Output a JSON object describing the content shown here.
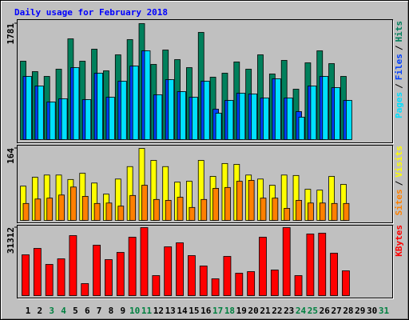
{
  "legend_separator": "/",
  "chart_data": [
    {
      "type": "bar",
      "title": "Daily usage for February 2018",
      "ylim": [
        0,
        1781
      ],
      "yticks": [
        1781
      ],
      "series": [
        {
          "name": "Hits",
          "color": "#00805c",
          "values": [
            1208,
            1049,
            976,
            1086,
            1549,
            1208,
            1391,
            1061,
            1305,
            1537,
            1781,
            1159,
            1378,
            1232,
            1110,
            1647,
            964,
            1025,
            1196,
            1086,
            1305,
            1013,
            1220,
            781,
            1183,
            1366,
            1171,
            976,
            null,
            null,
            null
          ]
        },
        {
          "name": "Files",
          "color": "#0040ff",
          "values": [
            976,
            830,
            586,
            635,
            1110,
            622,
            1025,
            659,
            903,
            1134,
            1366,
            696,
            927,
            744,
            659,
            903,
            476,
            610,
            720,
            708,
            647,
            940,
            647,
            439,
            830,
            976,
            805,
            610,
            null,
            null,
            null
          ]
        },
        {
          "name": "Pages",
          "color": "#00e0ff",
          "values": [
            976,
            830,
            586,
            635,
            1110,
            622,
            1025,
            659,
            903,
            1134,
            1366,
            696,
            927,
            744,
            659,
            903,
            415,
            610,
            720,
            708,
            647,
            940,
            647,
            354,
            830,
            976,
            805,
            610,
            null,
            null,
            null
          ]
        }
      ]
    },
    {
      "type": "bar",
      "ylim": [
        0,
        164
      ],
      "yticks": [
        164
      ],
      "series": [
        {
          "name": "Visits",
          "color": "#ffff00",
          "values": [
            79,
            99,
            104,
            104,
            94,
            108,
            86,
            61,
            95,
            123,
            164,
            137,
            123,
            88,
            90,
            137,
            101,
            130,
            128,
            104,
            95,
            81,
            104,
            103,
            72,
            70,
            101,
            83,
            null,
            null,
            null
          ]
        },
        {
          "name": "Sites",
          "color": "#ff8000",
          "values": [
            40,
            50,
            52,
            59,
            77,
            56,
            40,
            41,
            34,
            58,
            81,
            49,
            47,
            54,
            31,
            49,
            74,
            76,
            90,
            92,
            52,
            52,
            29,
            47,
            41,
            41,
            40,
            40,
            null,
            null,
            null
          ]
        }
      ]
    },
    {
      "type": "bar",
      "ylim": [
        0,
        31312
      ],
      "yticks": [
        31312
      ],
      "categories": [
        "1",
        "2",
        "3",
        "4",
        "5",
        "6",
        "7",
        "8",
        "9",
        "10",
        "11",
        "12",
        "13",
        "14",
        "15",
        "16",
        "17",
        "18",
        "19",
        "20",
        "21",
        "22",
        "23",
        "24",
        "25",
        "26",
        "27",
        "28",
        "29",
        "30",
        "31"
      ],
      "category_colors": [
        "#000000",
        "#000000",
        "#008040",
        "#008040",
        "#000000",
        "#000000",
        "#000000",
        "#000000",
        "#000000",
        "#008040",
        "#008040",
        "#000000",
        "#000000",
        "#000000",
        "#000000",
        "#000000",
        "#008040",
        "#008040",
        "#000000",
        "#000000",
        "#000000",
        "#000000",
        "#000000",
        "#008040",
        "#008040",
        "#000000",
        "#000000",
        "#000000",
        "#000000",
        "#000000",
        "#008040"
      ],
      "series": [
        {
          "name": "KBytes",
          "color": "#ff0000",
          "values": [
            18933,
            21846,
            14564,
            17113,
            27672,
            5826,
            23303,
            16749,
            20026,
            26944,
            31312,
            9467,
            22575,
            24395,
            18569,
            13836,
            8010,
            18205,
            10559,
            11287,
            26944,
            12015,
            31312,
            9467,
            28400,
            28764,
            19661,
            11651,
            null,
            null,
            null
          ]
        }
      ]
    }
  ]
}
